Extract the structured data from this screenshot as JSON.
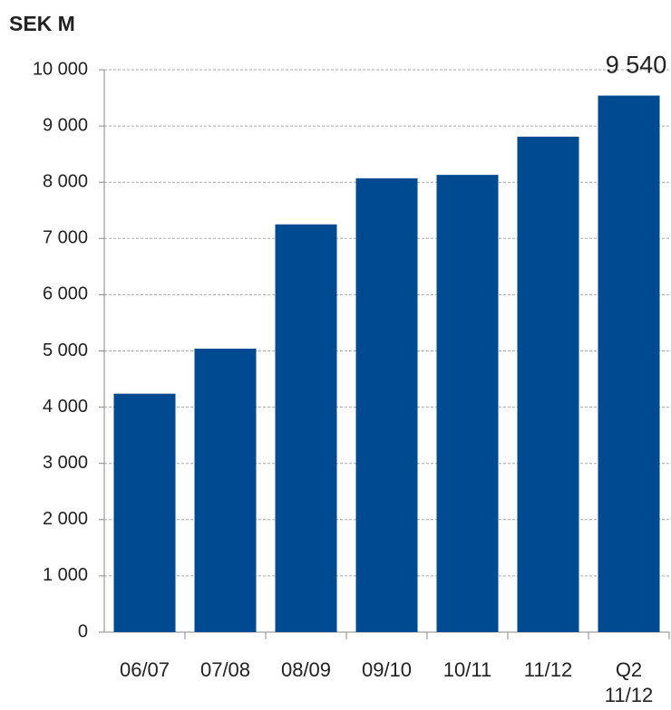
{
  "chart_data": {
    "type": "bar",
    "title": "SEK M",
    "categories": [
      "06/07",
      "07/08",
      "08/09",
      "09/10",
      "10/11",
      "11/12",
      "Q2\n11/12"
    ],
    "values": [
      4240,
      5040,
      7250,
      8070,
      8130,
      8810,
      9540
    ],
    "value_labels": [
      null,
      null,
      null,
      null,
      null,
      null,
      "9 540"
    ],
    "color": "#004a91",
    "ylim": [
      0,
      10000
    ],
    "yticks": [
      0,
      {
        "value": 1000,
        "label": "1 000"
      },
      {
        "value": 2000,
        "label": "2 000"
      },
      {
        "value": 3000,
        "label": "3 000"
      },
      {
        "value": 4000,
        "label": "4 000"
      },
      {
        "value": 5000,
        "label": "5 000"
      },
      {
        "value": 6000,
        "label": "6 000"
      },
      {
        "value": 7000,
        "label": "7 000"
      },
      {
        "value": 8000,
        "label": "8 000"
      },
      {
        "value": 9000,
        "label": "9 000"
      },
      {
        "value": 10000,
        "label": "10 000"
      }
    ],
    "grid": true
  }
}
